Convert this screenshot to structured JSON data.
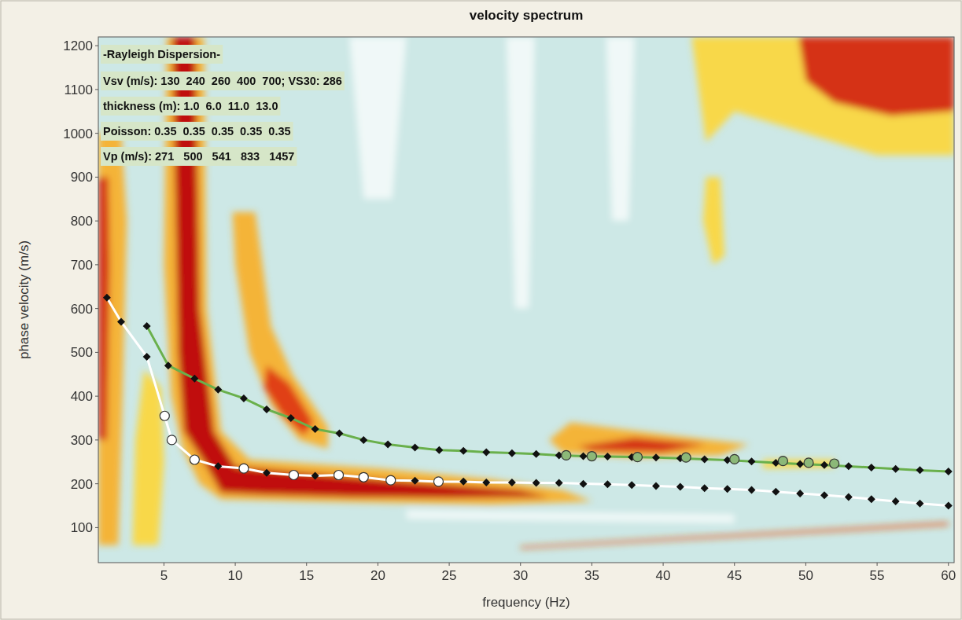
{
  "chart_data": {
    "type": "line",
    "title": "velocity spectrum",
    "x_label": "frequency (Hz)",
    "y_label": "phase velocity (m/s)",
    "xlim": [
      0.4,
      60.4
    ],
    "ylim": [
      20,
      1220
    ],
    "xticks": [
      5,
      10,
      15,
      20,
      25,
      30,
      35,
      40,
      45,
      50,
      55,
      60
    ],
    "yticks": [
      100,
      200,
      300,
      400,
      500,
      600,
      700,
      800,
      900,
      1000,
      1100,
      1200
    ],
    "grid": false,
    "annotations": [
      "-Rayleigh Dispersion-",
      "Vsv (m/s): 130  240  260  400  700; VS30: 286",
      "thickness (m): 1.0  6.0  11.0  13.0",
      "Poisson: 0.35  0.35  0.35  0.35  0.35",
      "Vp (m/s): 271   500   541   833   1457"
    ],
    "spectrum": {
      "contours": [
        {
          "level": 0,
          "points": [
            [
              18,
              1220
            ],
            [
              22,
              1220
            ],
            [
              21,
              850
            ],
            [
              19,
              850
            ]
          ]
        },
        {
          "level": 0,
          "points": [
            [
              29,
              1220
            ],
            [
              31,
              1220
            ],
            [
              30.6,
              600
            ],
            [
              29.6,
              600
            ]
          ]
        },
        {
          "level": 0,
          "points": [
            [
              36,
              1220
            ],
            [
              38,
              1220
            ],
            [
              37.6,
              800
            ],
            [
              36.4,
              800
            ]
          ]
        },
        {
          "level": 0,
          "points": [
            [
              22,
              120
            ],
            [
              45,
              110
            ],
            [
              45,
              130
            ],
            [
              22,
              140
            ]
          ]
        },
        {
          "level": 0.6,
          "points": [
            [
              0.4,
              60
            ],
            [
              1.8,
              60
            ],
            [
              2.1,
              400
            ],
            [
              2.4,
              800
            ],
            [
              2.0,
              1000
            ],
            [
              0.4,
              1000
            ]
          ]
        },
        {
          "level": 0.9,
          "points": [
            [
              0.4,
              300
            ],
            [
              1.0,
              300
            ],
            [
              1.2,
              700
            ],
            [
              1.1,
              900
            ],
            [
              0.4,
              900
            ]
          ]
        },
        {
          "level": 0.5,
          "points": [
            [
              2.8,
              60
            ],
            [
              4.6,
              60
            ],
            [
              5.0,
              250
            ],
            [
              4.8,
              420
            ],
            [
              3.6,
              460
            ],
            [
              3.0,
              300
            ]
          ]
        },
        {
          "level": 0.6,
          "points": [
            [
              5.2,
              1220
            ],
            [
              7.8,
              1220
            ],
            [
              8.0,
              600
            ],
            [
              9,
              320
            ],
            [
              11,
              255
            ],
            [
              20,
              235
            ],
            [
              28,
              210
            ],
            [
              33,
              185
            ],
            [
              35,
              160
            ],
            [
              28,
              152
            ],
            [
              15,
              160
            ],
            [
              9,
              165
            ],
            [
              7.5,
              200
            ],
            [
              6.3,
              280
            ],
            [
              5.5,
              400
            ],
            [
              5.0,
              700
            ]
          ]
        },
        {
          "level": 1,
          "points": [
            [
              5.6,
              1220
            ],
            [
              7.2,
              1220
            ],
            [
              7.5,
              600
            ],
            [
              8.5,
              320
            ],
            [
              10,
              240
            ],
            [
              15,
              225
            ],
            [
              22,
              205
            ],
            [
              30,
              185
            ],
            [
              32,
              170
            ],
            [
              25,
              168
            ],
            [
              18,
              170
            ],
            [
              12,
              175
            ],
            [
              9,
              180
            ],
            [
              8,
              240
            ],
            [
              6.4,
              320
            ],
            [
              6.0,
              500
            ]
          ]
        },
        {
          "level": 0.6,
          "points": [
            [
              9.8,
              820
            ],
            [
              11.4,
              820
            ],
            [
              12.5,
              560
            ],
            [
              14,
              450
            ],
            [
              16.5,
              330
            ],
            [
              16.5,
              280
            ],
            [
              14.5,
              300
            ],
            [
              12.5,
              380
            ],
            [
              11,
              500
            ],
            [
              10,
              700
            ]
          ]
        },
        {
          "level": 0.85,
          "points": [
            [
              12.2,
              470
            ],
            [
              13.8,
              430
            ],
            [
              15.5,
              340
            ],
            [
              14.8,
              310
            ],
            [
              13.2,
              360
            ],
            [
              12.0,
              420
            ]
          ]
        },
        {
          "level": 0.6,
          "points": [
            [
              32,
              300
            ],
            [
              33.5,
              340
            ],
            [
              37,
              325
            ],
            [
              42,
              305
            ],
            [
              46,
              290
            ],
            [
              44,
              265
            ],
            [
              38,
              260
            ],
            [
              33,
              270
            ]
          ]
        },
        {
          "level": 0.9,
          "points": [
            [
              34,
              285
            ],
            [
              38,
              305
            ],
            [
              43,
              290
            ],
            [
              40,
              272
            ],
            [
              35,
              275
            ]
          ]
        },
        {
          "level": 0.5,
          "points": [
            [
              42,
              1220
            ],
            [
              60.4,
              1220
            ],
            [
              60.4,
              950
            ],
            [
              55,
              950
            ],
            [
              50,
              1000
            ],
            [
              45,
              1050
            ],
            [
              43,
              980
            ],
            [
              42.5,
              1100
            ]
          ]
        },
        {
          "level": 0.9,
          "points": [
            [
              49.5,
              1220
            ],
            [
              60.4,
              1220
            ],
            [
              60.4,
              1050
            ],
            [
              56,
              1040
            ],
            [
              52,
              1070
            ],
            [
              50,
              1120
            ]
          ]
        },
        {
          "level": 0.5,
          "points": [
            [
              43,
              900
            ],
            [
              44,
              900
            ],
            [
              44.3,
              720
            ],
            [
              43.5,
              700
            ],
            [
              42.8,
              800
            ]
          ]
        },
        {
          "level": 0.5,
          "points": [
            [
              47,
              235
            ],
            [
              52,
              238
            ],
            [
              52,
              255
            ],
            [
              47,
              255
            ]
          ]
        },
        {
          "level": 0.8,
          "points": [
            [
              30,
              52
            ],
            [
              60,
              105
            ],
            [
              60,
              112
            ],
            [
              30,
              57
            ]
          ]
        }
      ]
    },
    "series": [
      {
        "type": "line",
        "color": "#ffffff",
        "marker": "diamond",
        "line_style": "solid",
        "x": [
          1,
          2,
          3.8,
          5.05,
          5.55,
          7.15,
          8.8,
          10.6,
          12.2,
          14.1,
          15.6,
          17.25,
          19.0,
          20.9,
          22.6,
          24.25,
          26,
          27.6,
          29.4,
          31.1,
          32.7,
          34.4,
          36.1,
          37.8,
          39.5,
          41.2,
          42.9,
          44.5,
          46.2,
          47.9,
          49.6,
          51.3,
          53,
          54.6,
          56.3,
          58,
          60
        ],
        "values": [
          625,
          570,
          490,
          355,
          300,
          255,
          240,
          235,
          225,
          220,
          218,
          220,
          215,
          208,
          207,
          205,
          205,
          203,
          203,
          202,
          202,
          200,
          199,
          197,
          195,
          193,
          190,
          188,
          186,
          182,
          178,
          174,
          170,
          165,
          160,
          155,
          150
        ]
      },
      {
        "type": "scatter",
        "color": "#ffffff",
        "marker": "circle",
        "x": [
          5.05,
          5.55,
          7.15,
          10.6,
          14.1,
          17.25,
          19.0,
          20.9,
          24.25
        ],
        "values": [
          355,
          300,
          255,
          235,
          220,
          220,
          215,
          208,
          205
        ]
      },
      {
        "type": "line",
        "color": "#6ab04c",
        "marker": "diamond",
        "line_style": "solid",
        "x": [
          3.8,
          5.3,
          7.15,
          8.8,
          10.6,
          12.2,
          13.9,
          15.6,
          17.3,
          19,
          20.7,
          22.6,
          24.3,
          26,
          27.6,
          29.4,
          31.1,
          32.7,
          34.4,
          36.1,
          37.8,
          39.5,
          41.2,
          42.9,
          44.5,
          46.2,
          47.9,
          49.6,
          51.3,
          53,
          54.6,
          56.3,
          58,
          60
        ],
        "values": [
          560,
          470,
          440,
          415,
          395,
          370,
          350,
          325,
          315,
          300,
          290,
          283,
          277,
          275,
          272,
          270,
          268,
          265,
          263,
          262,
          261,
          260,
          258,
          256,
          254,
          251,
          248,
          245,
          243,
          240,
          237,
          234,
          231,
          228
        ]
      },
      {
        "type": "scatter",
        "color": "#8cb878",
        "marker": "circle",
        "x": [
          33.2,
          35.0,
          38.2,
          41.6,
          45.0,
          48.4,
          50.2,
          52.0
        ],
        "values": [
          265,
          263,
          261,
          260,
          256,
          252,
          248,
          246
        ]
      }
    ]
  }
}
